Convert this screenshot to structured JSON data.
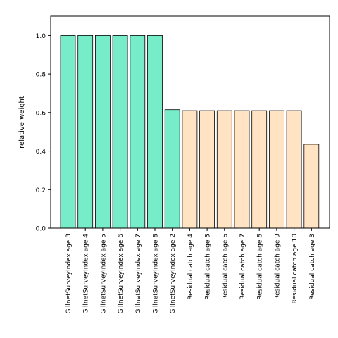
{
  "chart_data": {
    "type": "bar",
    "title": "",
    "xlabel": "",
    "ylabel": "relative weight",
    "ylim": [
      0,
      1.1
    ],
    "yticks": [
      "0.0",
      "0.2",
      "0.4",
      "0.6",
      "0.8",
      "1.0"
    ],
    "grid": false,
    "categories": [
      "GillnetSurveyIndex age 3",
      "GillnetSurveyIndex age 4",
      "GillnetSurveyIndex age 5",
      "GillnetSurveyIndex age 6",
      "GillnetSurveyIndex age 7",
      "GillnetSurveyIndex age 8",
      "GillnetSurveyIndex age 2",
      "Residual catch age 4",
      "Residual catch age 5",
      "Residual catch age 6",
      "Residual catch age 7",
      "Residual catch age 8",
      "Residual catch age 9",
      "Residual catch age 10",
      "Residual catch age 3"
    ],
    "values": [
      1.0,
      1.0,
      1.0,
      1.0,
      1.0,
      1.0,
      0.615,
      0.61,
      0.61,
      0.61,
      0.61,
      0.61,
      0.61,
      0.61,
      0.435
    ],
    "bar_colors": [
      "#77ecc8",
      "#77ecc8",
      "#77ecc8",
      "#77ecc8",
      "#77ecc8",
      "#77ecc8",
      "#77ecc8",
      "#ffe3c2",
      "#ffe3c2",
      "#ffe3c2",
      "#ffe3c2",
      "#ffe3c2",
      "#ffe3c2",
      "#ffe3c2",
      "#ffe3c2"
    ],
    "edge_color": "#000000"
  }
}
